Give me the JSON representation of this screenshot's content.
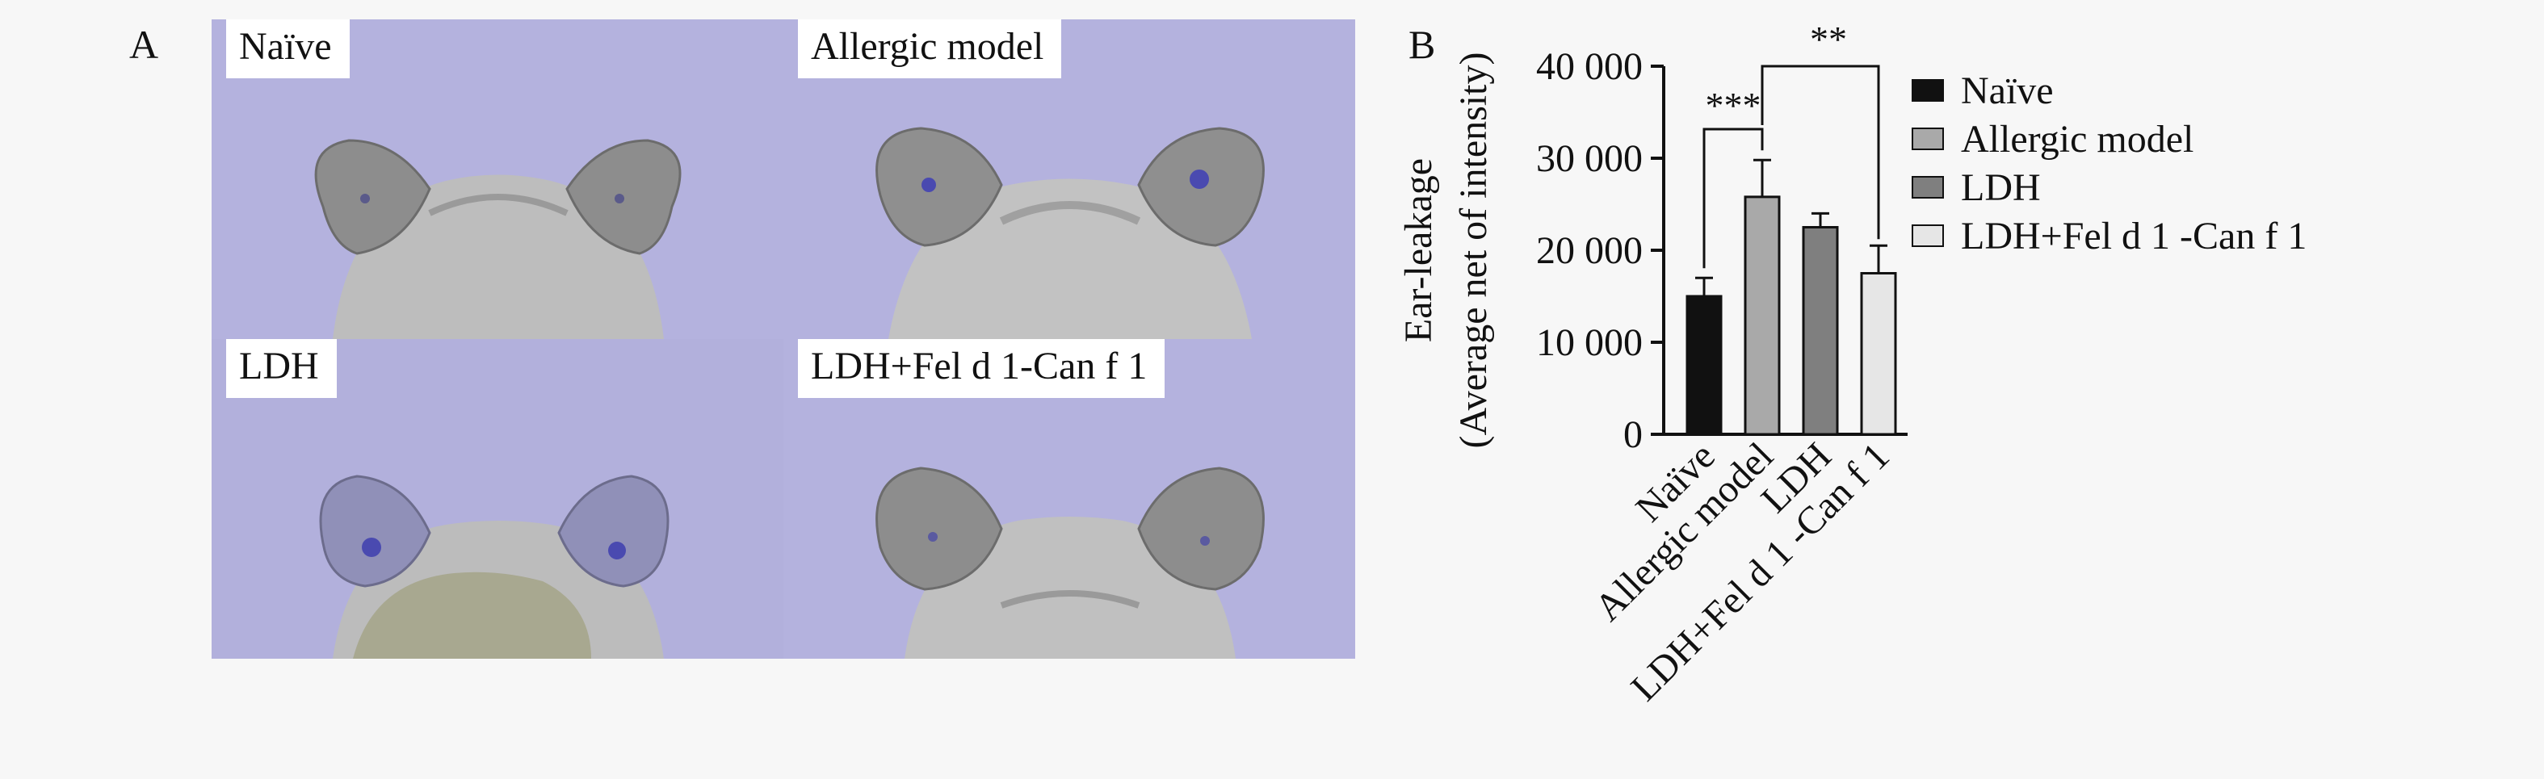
{
  "panel_a": {
    "letter": "A",
    "photos": [
      {
        "label": "Naïve"
      },
      {
        "label": "Allergic model"
      },
      {
        "label": "LDH"
      },
      {
        "label": "LDH+Fel d 1-Can f 1"
      }
    ]
  },
  "panel_b": {
    "letter": "B"
  },
  "chart_data": {
    "type": "bar",
    "categories": [
      "Naïve",
      "Allergic model",
      "LDH",
      "LDH+Fel d 1 -Can f 1"
    ],
    "values": [
      15000,
      25800,
      22500,
      17500
    ],
    "errors": [
      2000,
      4000,
      1500,
      3000
    ],
    "colors": [
      "#111111",
      "#a9a9a9",
      "#7f7f7f",
      "#e6e6e6"
    ],
    "ylabel_line1": "Ear-leakage",
    "ylabel_line2": "(Average net of intensity)",
    "ylim": [
      0,
      40000
    ],
    "yticks": [
      0,
      10000,
      20000,
      30000,
      40000
    ],
    "ytick_labels": [
      "0",
      "10 000",
      "20 000",
      "30 000",
      "40 000"
    ],
    "legend": [
      "Naïve",
      "Allergic model",
      "LDH",
      "LDH+Fel d 1 -Can f 1"
    ],
    "legend_position": "right",
    "significance": [
      {
        "from": 0,
        "to": 1,
        "label": "***"
      },
      {
        "from": 1,
        "to": 3,
        "label": "**"
      }
    ]
  }
}
